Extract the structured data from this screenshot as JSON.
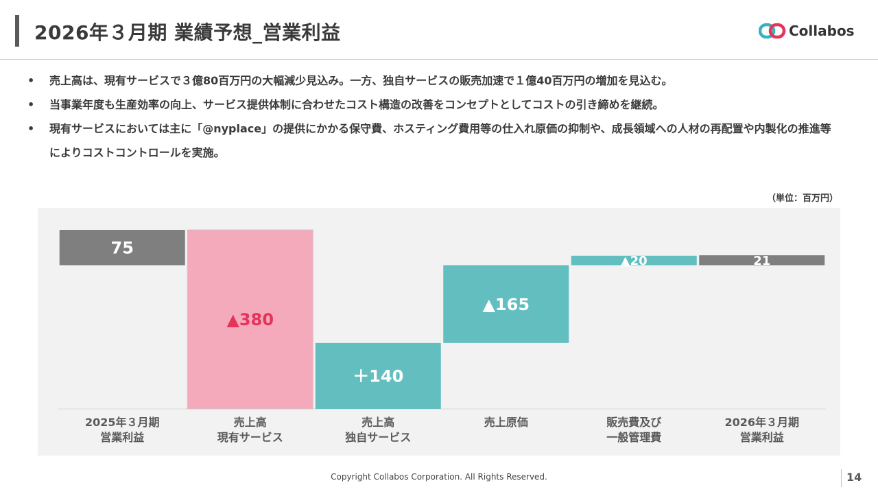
{
  "header": {
    "title": "2026年３月期 業績予想_営業利益",
    "logo_text": "Collabos"
  },
  "bullets": [
    "売上高は、現有サービスで３億80百万円の大幅減少見込み。一方、独自サービスの販売加速で１億40百万円の増加を見込む。",
    "当事業年度も生産効率の向上、サービス提供体制に合わせたコスト構造の改善をコンセプトとしてコストの引き締めを継続。",
    "現有サービスにおいては主に「@nyplace」の提供にかかる保守費、ホスティング費用等の仕入れ原価の抑制や、成長領域への人材の再配置や内製化の推進等によりコストコントロールを実施。"
  ],
  "unit_label": "（単位：百万円）",
  "chart_data": {
    "type": "bar",
    "subtype": "waterfall",
    "categories": [
      [
        "2025年３月期",
        "営業利益"
      ],
      [
        "売上高",
        "現有サービス"
      ],
      [
        "売上高",
        "独自サービス"
      ],
      [
        "売上原価"
      ],
      [
        "販売費及び",
        "一般管理費"
      ],
      [
        "2026年３月期",
        "営業利益"
      ]
    ],
    "bars": [
      {
        "kind": "total",
        "start": 0,
        "end": 75,
        "label": "75",
        "color": "#7f7f7f",
        "label_color": "#ffffff"
      },
      {
        "kind": "delta",
        "start": 75,
        "end": -305,
        "label": "▲380",
        "color": "#f4aabb",
        "label_color": "#e4345a"
      },
      {
        "kind": "delta",
        "start": -305,
        "end": -165,
        "label": "＋140",
        "color": "#63bec0",
        "label_color": "#ffffff"
      },
      {
        "kind": "delta",
        "start": -165,
        "end": 0,
        "label": "▲165",
        "color": "#63bec0",
        "label_color": "#ffffff"
      },
      {
        "kind": "delta",
        "start": 0,
        "end": 20,
        "label": "▲20",
        "color": "#63bec0",
        "label_color": "#ffffff"
      },
      {
        "kind": "total",
        "start": 0,
        "end": 21,
        "label": "21",
        "color": "#7f7f7f",
        "label_color": "#ffffff"
      }
    ],
    "ylim": [
      -305,
      75
    ],
    "grid": false,
    "legend": "none"
  },
  "footer": {
    "copyright": "Copyright Collabos Corporation. All Rights Reserved.",
    "page_number": "14"
  },
  "colors": {
    "panel_bg": "#f2f2f2",
    "logo_red": "#e4345a",
    "logo_teal": "#36b3c0",
    "title_bar": "#595959"
  }
}
